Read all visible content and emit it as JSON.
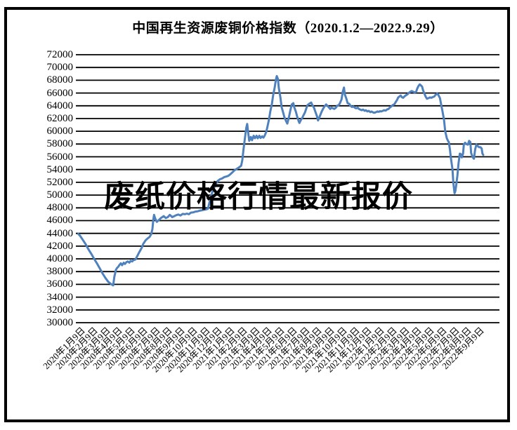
{
  "title": "中国再生资源废铜价格指数（2020.1.2—2022.9.29）",
  "watermark": "废纸价格行情最新报价",
  "colors": {
    "line": "#4F81BD",
    "grid": "#000000",
    "frame": "#000000",
    "background": "#FFFFFF",
    "text": "#000000"
  },
  "chart_data": {
    "type": "line",
    "title": "中国再生资源废铜价格指数（2020.1.2—2022.9.29）",
    "date_range_start": "2020.1.2",
    "date_range_end": "2022.9.29",
    "ylim": [
      30000,
      72000
    ],
    "y_tick_step": 2000,
    "grid": "horizontal",
    "legend_position": "none",
    "y_tick_labels": [
      "72000",
      "70000",
      "68000",
      "66000",
      "64000",
      "62000",
      "60000",
      "58000",
      "56000",
      "54000",
      "52000",
      "50000",
      "48000",
      "46000",
      "44000",
      "42000",
      "40000",
      "38000",
      "36000",
      "34000",
      "32000",
      "30000"
    ],
    "x_tick_labels": [
      "2020年1月9日",
      "2020年2月9日",
      "2020年3月9日",
      "2020年4月9日",
      "2020年5月9日",
      "2020年6月9日",
      "2020年7月9日",
      "2020年8月9日",
      "2020年9月9日",
      "2020年10月9日",
      "2020年11月9日",
      "2020年12月9日",
      "2021年1月9日",
      "2021年2月9日",
      "2021年3月9日",
      "2021年4月9日",
      "2021年5月9日",
      "2021年6月9日",
      "2021年7月9日",
      "2021年8月9日",
      "2021年9月9日",
      "2021年10月9日",
      "2021年11月9日",
      "2021年12月9日",
      "2022年1月9日",
      "2022年2月9日",
      "2022年3月9日",
      "2022年4月9日",
      "2022年5月9日",
      "2022年6月9日",
      "2022年7月9日",
      "2022年8月9日",
      "2022年9月9日"
    ],
    "series": [
      {
        "x_unit": "fraction_of_date_range",
        "points": [
          [
            0.0,
            43900
          ],
          [
            0.004,
            43650
          ],
          [
            0.011,
            43000
          ],
          [
            0.018,
            42300
          ],
          [
            0.025,
            41500
          ],
          [
            0.032,
            40800
          ],
          [
            0.039,
            40000
          ],
          [
            0.046,
            39300
          ],
          [
            0.053,
            38500
          ],
          [
            0.06,
            37700
          ],
          [
            0.067,
            37000
          ],
          [
            0.074,
            36400
          ],
          [
            0.081,
            36050
          ],
          [
            0.086,
            35850
          ],
          [
            0.089,
            37200
          ],
          [
            0.093,
            38300
          ],
          [
            0.096,
            38600
          ],
          [
            0.099,
            38800
          ],
          [
            0.101,
            39000
          ],
          [
            0.105,
            39300
          ],
          [
            0.108,
            39000
          ],
          [
            0.112,
            39400
          ],
          [
            0.115,
            39200
          ],
          [
            0.119,
            39500
          ],
          [
            0.122,
            39600
          ],
          [
            0.126,
            39400
          ],
          [
            0.129,
            39700
          ],
          [
            0.133,
            39600
          ],
          [
            0.136,
            39800
          ],
          [
            0.141,
            39900
          ],
          [
            0.147,
            40600
          ],
          [
            0.15,
            41000
          ],
          [
            0.154,
            41450
          ],
          [
            0.157,
            41800
          ],
          [
            0.16,
            42300
          ],
          [
            0.166,
            42900
          ],
          [
            0.171,
            43200
          ],
          [
            0.176,
            43450
          ],
          [
            0.18,
            43900
          ],
          [
            0.183,
            44700
          ],
          [
            0.185,
            46100
          ],
          [
            0.187,
            46900
          ],
          [
            0.19,
            46300
          ],
          [
            0.194,
            45800
          ],
          [
            0.199,
            46100
          ],
          [
            0.204,
            46400
          ],
          [
            0.211,
            46700
          ],
          [
            0.216,
            46400
          ],
          [
            0.221,
            46550
          ],
          [
            0.226,
            46900
          ],
          [
            0.232,
            46550
          ],
          [
            0.237,
            46700
          ],
          [
            0.242,
            46850
          ],
          [
            0.247,
            46950
          ],
          [
            0.252,
            46800
          ],
          [
            0.258,
            47050
          ],
          [
            0.263,
            47000
          ],
          [
            0.268,
            47100
          ],
          [
            0.273,
            47000
          ],
          [
            0.278,
            47250
          ],
          [
            0.284,
            47300
          ],
          [
            0.289,
            47400
          ],
          [
            0.294,
            47450
          ],
          [
            0.299,
            47550
          ],
          [
            0.304,
            47600
          ],
          [
            0.31,
            47700
          ],
          [
            0.315,
            47750
          ],
          [
            0.32,
            47850
          ],
          [
            0.324,
            48900
          ],
          [
            0.327,
            49600
          ],
          [
            0.33,
            50300
          ],
          [
            0.334,
            50900
          ],
          [
            0.337,
            51500
          ],
          [
            0.341,
            51900
          ],
          [
            0.344,
            52200
          ],
          [
            0.35,
            52500
          ],
          [
            0.355,
            52600
          ],
          [
            0.36,
            52800
          ],
          [
            0.365,
            52900
          ],
          [
            0.37,
            53000
          ],
          [
            0.376,
            53300
          ],
          [
            0.381,
            53600
          ],
          [
            0.386,
            53900
          ],
          [
            0.391,
            54100
          ],
          [
            0.396,
            54300
          ],
          [
            0.402,
            54600
          ],
          [
            0.405,
            55500
          ],
          [
            0.408,
            57200
          ],
          [
            0.412,
            59200
          ],
          [
            0.415,
            60600
          ],
          [
            0.417,
            61150
          ],
          [
            0.419,
            60000
          ],
          [
            0.422,
            58500
          ],
          [
            0.426,
            59100
          ],
          [
            0.429,
            58600
          ],
          [
            0.433,
            59300
          ],
          [
            0.436,
            58900
          ],
          [
            0.44,
            59300
          ],
          [
            0.443,
            58900
          ],
          [
            0.447,
            59300
          ],
          [
            0.45,
            58950
          ],
          [
            0.454,
            59200
          ],
          [
            0.457,
            59000
          ],
          [
            0.46,
            59300
          ],
          [
            0.464,
            59900
          ],
          [
            0.467,
            60700
          ],
          [
            0.471,
            61900
          ],
          [
            0.474,
            63100
          ],
          [
            0.478,
            64300
          ],
          [
            0.481,
            65600
          ],
          [
            0.485,
            66900
          ],
          [
            0.488,
            68100
          ],
          [
            0.49,
            68650
          ],
          [
            0.493,
            68200
          ],
          [
            0.495,
            66800
          ],
          [
            0.499,
            65300
          ],
          [
            0.502,
            63800
          ],
          [
            0.506,
            62900
          ],
          [
            0.509,
            62200
          ],
          [
            0.513,
            61600
          ],
          [
            0.516,
            61200
          ],
          [
            0.52,
            62200
          ],
          [
            0.523,
            63100
          ],
          [
            0.527,
            64200
          ],
          [
            0.531,
            64400
          ],
          [
            0.533,
            63800
          ],
          [
            0.537,
            63100
          ],
          [
            0.54,
            62400
          ],
          [
            0.544,
            61600
          ],
          [
            0.546,
            61300
          ],
          [
            0.549,
            61700
          ],
          [
            0.553,
            62100
          ],
          [
            0.556,
            62500
          ],
          [
            0.56,
            63000
          ],
          [
            0.563,
            63600
          ],
          [
            0.566,
            64100
          ],
          [
            0.57,
            64300
          ],
          [
            0.575,
            64500
          ],
          [
            0.578,
            64100
          ],
          [
            0.582,
            63700
          ],
          [
            0.585,
            63100
          ],
          [
            0.589,
            62400
          ],
          [
            0.592,
            61700
          ],
          [
            0.594,
            62000
          ],
          [
            0.598,
            62600
          ],
          [
            0.601,
            63100
          ],
          [
            0.605,
            63600
          ],
          [
            0.608,
            63900
          ],
          [
            0.612,
            64200
          ],
          [
            0.615,
            64000
          ],
          [
            0.618,
            63800
          ],
          [
            0.622,
            63500
          ],
          [
            0.625,
            63700
          ],
          [
            0.629,
            63600
          ],
          [
            0.632,
            63500
          ],
          [
            0.636,
            63700
          ],
          [
            0.639,
            64000
          ],
          [
            0.643,
            64100
          ],
          [
            0.646,
            64400
          ],
          [
            0.65,
            65000
          ],
          [
            0.653,
            66200
          ],
          [
            0.656,
            66850
          ],
          [
            0.658,
            65800
          ],
          [
            0.662,
            65100
          ],
          [
            0.665,
            64400
          ],
          [
            0.669,
            64300
          ],
          [
            0.672,
            64000
          ],
          [
            0.676,
            63800
          ],
          [
            0.679,
            63900
          ],
          [
            0.683,
            63700
          ],
          [
            0.686,
            63600
          ],
          [
            0.69,
            63700
          ],
          [
            0.693,
            63500
          ],
          [
            0.696,
            63400
          ],
          [
            0.7,
            63300
          ],
          [
            0.703,
            63400
          ],
          [
            0.707,
            63200
          ],
          [
            0.71,
            63300
          ],
          [
            0.714,
            63100
          ],
          [
            0.717,
            63200
          ],
          [
            0.721,
            63000
          ],
          [
            0.724,
            63100
          ],
          [
            0.728,
            62950
          ],
          [
            0.731,
            62900
          ],
          [
            0.735,
            63000
          ],
          [
            0.738,
            63100
          ],
          [
            0.742,
            63050
          ],
          [
            0.745,
            63150
          ],
          [
            0.748,
            63100
          ],
          [
            0.752,
            63200
          ],
          [
            0.755,
            63300
          ],
          [
            0.759,
            63250
          ],
          [
            0.762,
            63400
          ],
          [
            0.766,
            63500
          ],
          [
            0.769,
            63700
          ],
          [
            0.773,
            63900
          ],
          [
            0.776,
            64100
          ],
          [
            0.78,
            64200
          ],
          [
            0.783,
            64500
          ],
          [
            0.787,
            64900
          ],
          [
            0.79,
            65300
          ],
          [
            0.794,
            65500
          ],
          [
            0.796,
            65600
          ],
          [
            0.799,
            65350
          ],
          [
            0.802,
            65250
          ],
          [
            0.806,
            65500
          ],
          [
            0.809,
            65650
          ],
          [
            0.813,
            65800
          ],
          [
            0.816,
            66000
          ],
          [
            0.82,
            66200
          ],
          [
            0.823,
            66300
          ],
          [
            0.827,
            66200
          ],
          [
            0.83,
            66100
          ],
          [
            0.834,
            66150
          ],
          [
            0.837,
            66700
          ],
          [
            0.84,
            67100
          ],
          [
            0.843,
            67350
          ],
          [
            0.846,
            67200
          ],
          [
            0.849,
            67000
          ],
          [
            0.851,
            66500
          ],
          [
            0.854,
            66000
          ],
          [
            0.858,
            65400
          ],
          [
            0.861,
            65100
          ],
          [
            0.865,
            65200
          ],
          [
            0.868,
            65300
          ],
          [
            0.872,
            65250
          ],
          [
            0.875,
            65350
          ],
          [
            0.879,
            65450
          ],
          [
            0.882,
            65700
          ],
          [
            0.886,
            65900
          ],
          [
            0.889,
            65700
          ],
          [
            0.893,
            65200
          ],
          [
            0.896,
            64200
          ],
          [
            0.899,
            63200
          ],
          [
            0.903,
            61800
          ],
          [
            0.906,
            60000
          ],
          [
            0.91,
            58900
          ],
          [
            0.913,
            58500
          ],
          [
            0.915,
            58300
          ],
          [
            0.918,
            57000
          ],
          [
            0.92,
            55800
          ],
          [
            0.924,
            54000
          ],
          [
            0.926,
            52000
          ],
          [
            0.929,
            50300
          ],
          [
            0.931,
            50600
          ],
          [
            0.933,
            51500
          ],
          [
            0.936,
            53000
          ],
          [
            0.939,
            55000
          ],
          [
            0.942,
            56500
          ],
          [
            0.945,
            56400
          ],
          [
            0.947,
            55900
          ],
          [
            0.95,
            56500
          ],
          [
            0.952,
            57900
          ],
          [
            0.955,
            58200
          ],
          [
            0.958,
            58000
          ],
          [
            0.962,
            57900
          ],
          [
            0.965,
            58500
          ],
          [
            0.968,
            58300
          ],
          [
            0.97,
            56600
          ],
          [
            0.974,
            55900
          ],
          [
            0.977,
            55700
          ],
          [
            0.98,
            57200
          ],
          [
            0.983,
            57900
          ],
          [
            0.986,
            57700
          ],
          [
            0.99,
            57500
          ],
          [
            0.993,
            57500
          ],
          [
            0.996,
            57300
          ],
          [
            0.998,
            56500
          ],
          [
            1.0,
            56300
          ]
        ]
      }
    ]
  }
}
